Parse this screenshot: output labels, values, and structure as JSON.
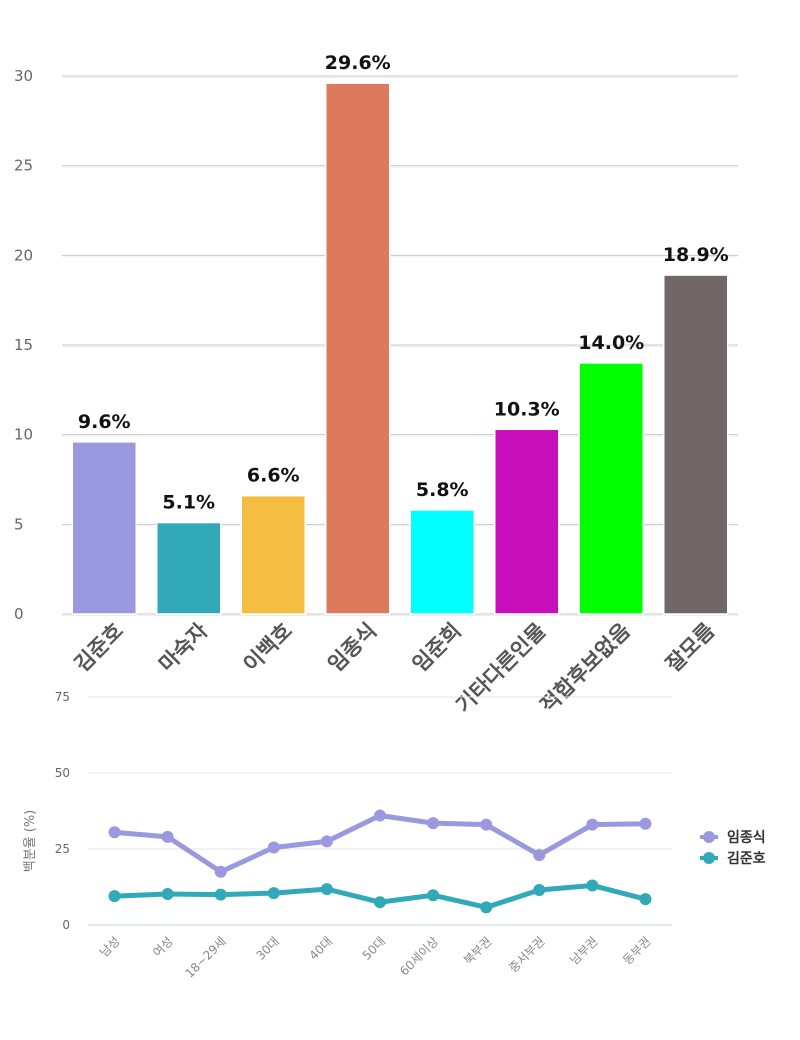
{
  "chart_data": [
    {
      "type": "bar",
      "categories": [
        "김준호",
        "마숙자",
        "이백호",
        "임종식",
        "임준희",
        "기타다른인물",
        "적합후보없음",
        "잘모름"
      ],
      "values": [
        9.6,
        5.1,
        6.6,
        29.6,
        5.8,
        10.3,
        14.0,
        18.9
      ],
      "data_labels": [
        "9.6%",
        "5.1%",
        "6.6%",
        "29.6%",
        "5.8%",
        "10.3%",
        "14.0%",
        "18.9%"
      ],
      "colors": [
        "#9a99e0",
        "#31a9b8",
        "#f5be41",
        "#dd7a5d",
        "#00ffff",
        "#c90fbb",
        "#00ff00",
        "#716766"
      ],
      "yticks": [
        0,
        5,
        10,
        15,
        20,
        25,
        30
      ],
      "ylim": [
        0,
        30
      ],
      "grid": true
    },
    {
      "type": "line",
      "categories": [
        "남성",
        "여성",
        "18~29세",
        "30대",
        "40대",
        "50대",
        "60세이상",
        "북부권",
        "중서부권",
        "남부권",
        "동부권"
      ],
      "ylabel": "백분율 (%)",
      "yticks": [
        0,
        25,
        50,
        75
      ],
      "ylim": [
        0,
        75
      ],
      "legend": "right",
      "series": [
        {
          "name": "임종식",
          "color": "#9a99e0",
          "values": [
            30.5,
            29,
            17.5,
            25.5,
            27.5,
            36,
            33.5,
            33,
            23,
            33,
            33.3
          ]
        },
        {
          "name": "김준호",
          "color": "#31a9b8",
          "values": [
            9.5,
            10.2,
            10,
            10.5,
            11.8,
            7.5,
            9.8,
            5.8,
            11.5,
            13,
            8.5
          ]
        }
      ]
    }
  ]
}
